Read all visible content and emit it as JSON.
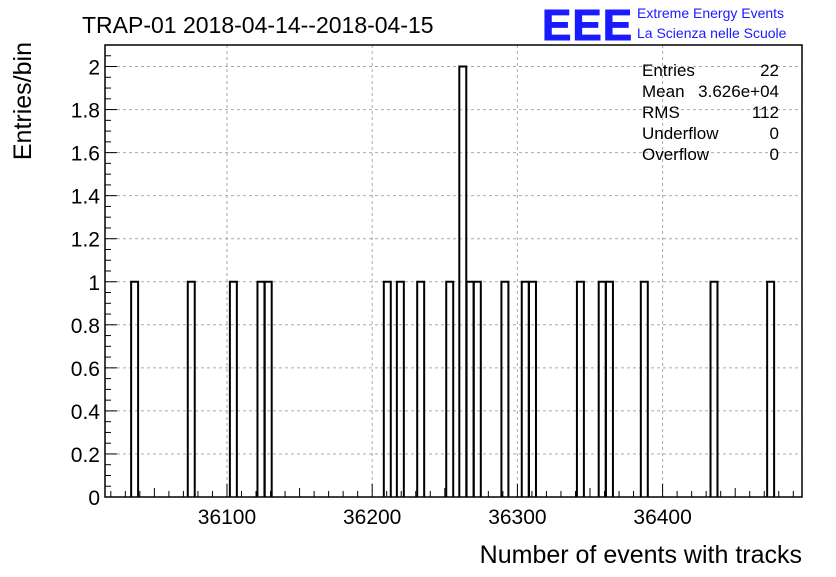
{
  "chart_data": {
    "type": "bar",
    "title": "TRAP-01 2018-04-14--2018-04-15",
    "xlabel": "Number of events with tracks",
    "ylabel": "Entries/bin",
    "xlim": [
      36016,
      36496
    ],
    "ylim": [
      0,
      2.1
    ],
    "grid": true,
    "x_ticks": [
      36100,
      36200,
      36300,
      36400
    ],
    "y_ticks": [
      0,
      0.2,
      0.4,
      0.6,
      0.8,
      1,
      1.2,
      1.4,
      1.6,
      1.8,
      2
    ],
    "y_tick_labels": [
      "0",
      "0.2",
      "0.4",
      "0.6",
      "0.8",
      "1",
      "1.2",
      "1.4",
      "1.6",
      "1.8",
      "2"
    ],
    "bin_width": 4.8,
    "bins": [
      {
        "x": 36034,
        "value": 1
      },
      {
        "x": 36073,
        "value": 1
      },
      {
        "x": 36102,
        "value": 1
      },
      {
        "x": 36121,
        "value": 1
      },
      {
        "x": 36126,
        "value": 1
      },
      {
        "x": 36208,
        "value": 1
      },
      {
        "x": 36217,
        "value": 1
      },
      {
        "x": 36231,
        "value": 1
      },
      {
        "x": 36251,
        "value": 1
      },
      {
        "x": 36260,
        "value": 2
      },
      {
        "x": 36265,
        "value": 1
      },
      {
        "x": 36270,
        "value": 1
      },
      {
        "x": 36289,
        "value": 1
      },
      {
        "x": 36303,
        "value": 1
      },
      {
        "x": 36308,
        "value": 1
      },
      {
        "x": 36341,
        "value": 1
      },
      {
        "x": 36356,
        "value": 1
      },
      {
        "x": 36361,
        "value": 1
      },
      {
        "x": 36385,
        "value": 1
      },
      {
        "x": 36433,
        "value": 1
      },
      {
        "x": 36472,
        "value": 1
      }
    ]
  },
  "stats": {
    "rows": [
      {
        "label": "Entries",
        "value": "22"
      },
      {
        "label": "Mean",
        "value": "3.626e+04"
      },
      {
        "label": "RMS",
        "value": "112"
      },
      {
        "label": "Underflow",
        "value": "0"
      },
      {
        "label": "Overflow",
        "value": "0"
      }
    ]
  },
  "logo": {
    "mark": "EEE",
    "line1": "Extreme Energy Events",
    "line2": "La Scienza nelle Scuole",
    "color": "#1a1aff"
  }
}
